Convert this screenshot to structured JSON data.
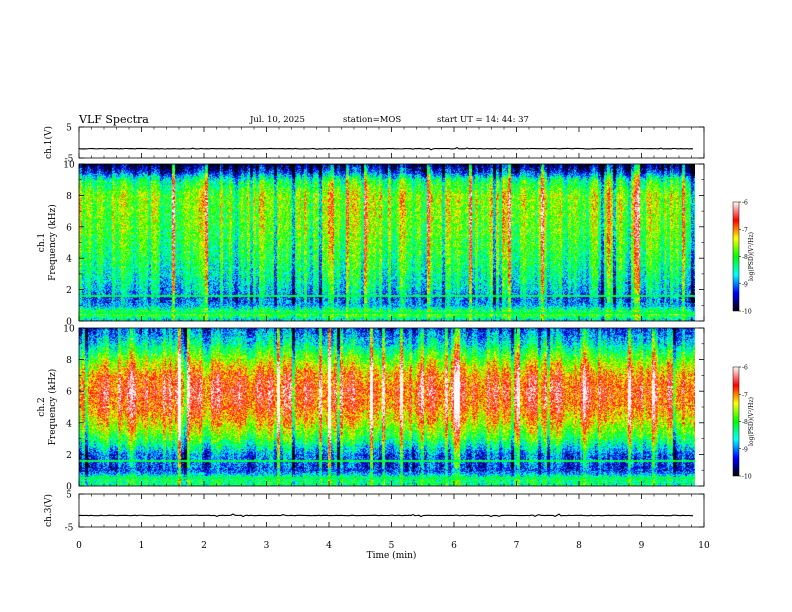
{
  "header": {
    "title": "VLF Spectra",
    "date": "Jul. 10, 2025",
    "station": "station=MOS",
    "start_time": "start UT =  14: 44: 37"
  },
  "colors": {
    "frame": "#000000",
    "spectrum_low": "#000080",
    "spectrum_high": "#ffffff"
  },
  "chart_data": [
    {
      "type": "line",
      "name": "ch1-voltage",
      "ylabel": "ch.1(V)",
      "ylim": [
        -5,
        5
      ],
      "yticks": [
        "5",
        "-5"
      ],
      "xlim": [
        0,
        10
      ],
      "value_approx": -2
    },
    {
      "type": "heatmap",
      "name": "ch1-spectrogram",
      "ylabel": "ch.1\nFrequency (kHz)",
      "ylim": [
        0,
        10
      ],
      "yticks": [
        "0",
        "2",
        "4",
        "6",
        "8",
        "10"
      ],
      "xlim": [
        0,
        9.85
      ],
      "data_end_min": 9.85,
      "intensity_profile_by_freq_khz": [
        [
          0.0,
          0.32
        ],
        [
          0.5,
          0.55
        ],
        [
          1.0,
          0.3
        ],
        [
          1.5,
          0.25
        ],
        [
          2.0,
          0.35
        ],
        [
          3.0,
          0.42
        ],
        [
          4.0,
          0.48
        ],
        [
          5.0,
          0.52
        ],
        [
          6.0,
          0.56
        ],
        [
          7.0,
          0.58
        ],
        [
          8.0,
          0.6
        ],
        [
          9.0,
          0.45
        ],
        [
          9.5,
          0.2
        ],
        [
          10.0,
          0.05
        ]
      ],
      "colorbar": {
        "label": "log(PSD)(V²/Hz)",
        "ticks": [
          "-6",
          "-7",
          "-8",
          "-9",
          "-10"
        ],
        "range": [
          -10,
          -6
        ],
        "colors": [
          "#000000",
          "#0000ff",
          "#00ffff",
          "#00ff00",
          "#ffff00",
          "#ff0000",
          "#ffffff"
        ]
      }
    },
    {
      "type": "heatmap",
      "name": "ch2-spectrogram",
      "ylabel": "ch.2\nFrequency (kHz)",
      "ylim": [
        0,
        10
      ],
      "yticks": [
        "0",
        "2",
        "4",
        "6",
        "8",
        "10"
      ],
      "xlim": [
        0,
        9.85
      ],
      "data_end_min": 9.85,
      "intensity_profile_by_freq_khz": [
        [
          0.0,
          0.42
        ],
        [
          0.5,
          0.45
        ],
        [
          1.0,
          0.2
        ],
        [
          2.0,
          0.25
        ],
        [
          3.0,
          0.5
        ],
        [
          4.0,
          0.68
        ],
        [
          5.0,
          0.8
        ],
        [
          6.0,
          0.85
        ],
        [
          7.0,
          0.78
        ],
        [
          8.0,
          0.6
        ],
        [
          9.0,
          0.38
        ],
        [
          10.0,
          0.22
        ]
      ],
      "colorbar": {
        "label": "log(PSD)(V²/Hz)",
        "ticks": [
          "-6",
          "-7",
          "-8",
          "-9",
          "-10"
        ],
        "range": [
          -10,
          -6
        ],
        "colors": [
          "#000000",
          "#0000ff",
          "#00ffff",
          "#00ff00",
          "#ffff00",
          "#ff0000",
          "#ffffff"
        ]
      }
    },
    {
      "type": "line",
      "name": "ch3-voltage",
      "ylabel": "ch.3(V)",
      "ylim": [
        -5,
        5
      ],
      "yticks": [
        "5",
        "-5"
      ],
      "xlim": [
        0,
        10
      ],
      "value_approx": -1.5,
      "xlabel": "Time (min)",
      "xticks": [
        "0",
        "1",
        "2",
        "3",
        "4",
        "5",
        "6",
        "7",
        "8",
        "9",
        "10"
      ]
    }
  ]
}
